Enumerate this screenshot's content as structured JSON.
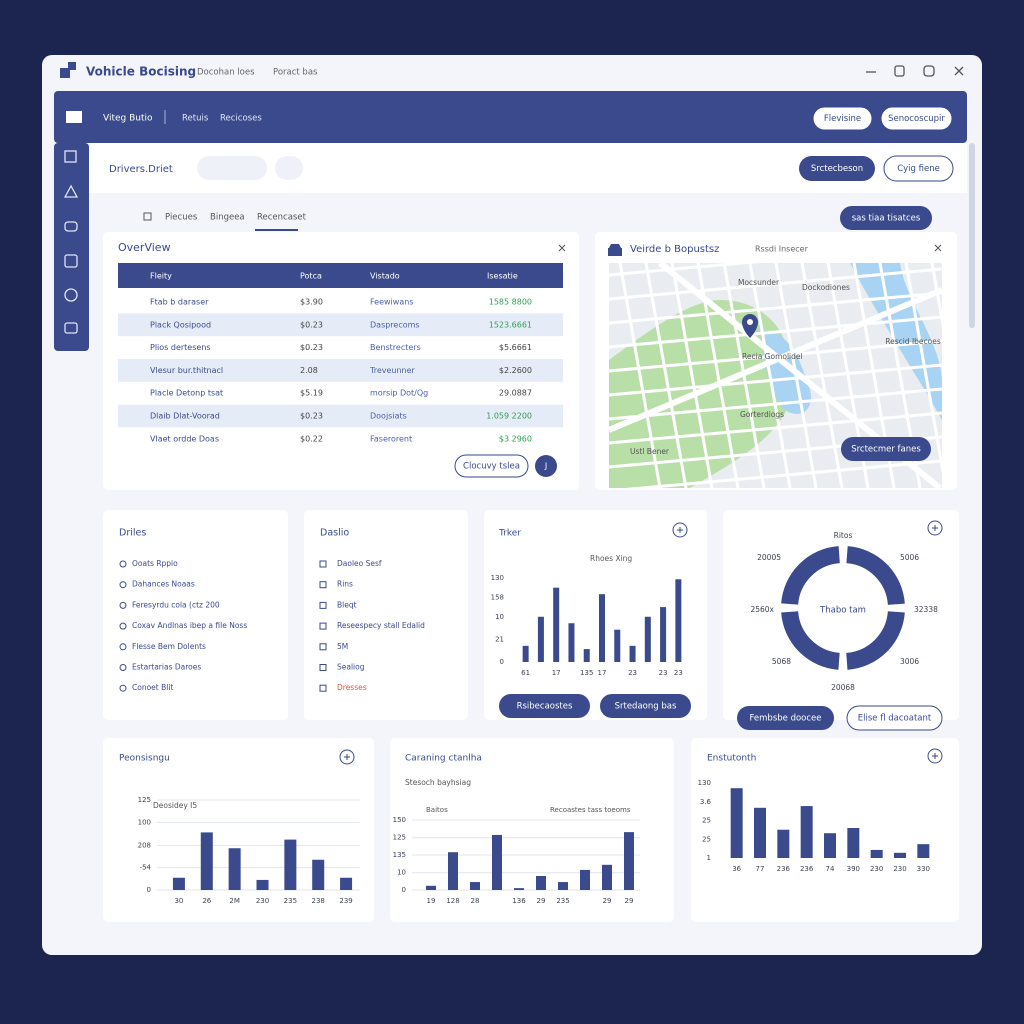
{
  "window": {
    "title": "Vohicle Bocising",
    "menu": [
      "Docohan loes",
      "Poract bas"
    ]
  },
  "header": {
    "title": "Viteg Butio",
    "links": [
      "Retuis",
      "Recicoses"
    ],
    "buttons": [
      "Flevisine",
      "Senocoscupir"
    ]
  },
  "subheader": {
    "title": "Drivers.Driet",
    "buttons": [
      "Srctecbeson",
      "Cyig fiene"
    ]
  },
  "tabs": {
    "items": [
      "Piecues",
      "Bingeea",
      "Recencaset"
    ],
    "action": "sas tiaa tisatces"
  },
  "overview": {
    "title": "OverView",
    "columns": [
      "Fleity",
      "Potca",
      "Vistado",
      "Isesatie"
    ],
    "rows": [
      [
        "Ftab b daraser",
        "$3.90",
        "Feewiwans",
        "1585 8800"
      ],
      [
        "Plack Qosipood",
        "$0.23",
        "Dasprecoms",
        "1523.6661"
      ],
      [
        "Plios dertesens",
        "$0.23",
        "Benstrecters",
        "$5.6661"
      ],
      [
        "Vlesur bur.thitnacl",
        "2.08",
        "Treveunner",
        "$2.2600"
      ],
      [
        "Placle Detonp tsat",
        "$5.19",
        "morsip Dot/Qg",
        "29.0887"
      ],
      [
        "Dlaib Dlat-Voorad",
        "$0.23",
        "Doojsiats",
        "1.059 2200"
      ],
      [
        "Vlaet ordde Doas",
        "$0.22",
        "Faserorent",
        "$3 2960"
      ]
    ],
    "button": "Clocuvy tslea",
    "round_button": "J"
  },
  "map": {
    "title": "Veirde b Bopustsz",
    "subtitle": "Rssdi Insecer",
    "labels": [
      "Mocsunder",
      "Dockodiones",
      "Recia Gomolidel",
      "Rescid Ibecoes",
      "Gorterdiogs",
      "Ustl Bener"
    ],
    "button": "Srctecmer fanes"
  },
  "drives": {
    "title": "Driles",
    "items": [
      "Ooats Rppio",
      "Dahances Noaas",
      "Feresyrdu cola (ctz 200",
      "Coxav Andlnas ibep a file Noss",
      "Flesse Bem Dolents",
      "Estartarias Daroes",
      "Conoet Blit"
    ]
  },
  "details": {
    "title": "Daslio",
    "items": [
      "Daoleo Sesf",
      "Rins",
      "Bleqt",
      "Reseespecy stall Edalid",
      "5M",
      "Sealiog",
      "Dresses"
    ]
  },
  "donut": {
    "title": "Ritos",
    "center": "Thabo tam",
    "labels": [
      "20005",
      "5006",
      "2560x",
      "32338",
      "5068",
      "3006",
      "20068"
    ],
    "buttons": [
      "Fembsbe doocee",
      "Elise fl dacoatant"
    ]
  },
  "charts": [
    {
      "type": "bar",
      "title": "Trker",
      "subtitle": "Rhoes Xing",
      "color": "#3a4a8c",
      "grid": false,
      "categories": [
        "61",
        null,
        "17",
        null,
        "135",
        "17",
        null,
        "23",
        null,
        "23",
        "23"
      ],
      "values": [
        25,
        70,
        115,
        60,
        20,
        105,
        50,
        25,
        70,
        85,
        128
      ],
      "ylim": [
        0,
        130
      ],
      "yticks": [
        0,
        {
          "value": 35,
          "label": "21"
        },
        {
          "value": 70,
          "label": "10"
        },
        {
          "value": 100,
          "label": "158"
        },
        130
      ],
      "buttons": [
        "Rsibecaostes",
        "Srtedaong bas"
      ]
    },
    {
      "type": "bar",
      "title": "Peonsisngu",
      "subtitle": "Deosidey I5",
      "color": "#3a4a8c",
      "grid": true,
      "categories": [
        "30",
        "26",
        "2M",
        "230",
        "235",
        "238",
        "239"
      ],
      "values": [
        17,
        80,
        58,
        14,
        70,
        42,
        17
      ],
      "ylim": [
        0,
        125
      ],
      "yticks": [
        0,
        {
          "value": 31,
          "label": "-54"
        },
        {
          "value": 62,
          "label": "208"
        },
        {
          "value": 94,
          "label": "100"
        },
        125
      ]
    },
    {
      "type": "bar",
      "title": "Caraning ctanlha",
      "subtitle": "Stesoch bayhsiag",
      "legend": [
        "Baitos",
        "Recoastes tass toeoms"
      ],
      "color": "#3a4a8c",
      "grid": true,
      "categories": [
        "19",
        "128",
        "28",
        null,
        "136",
        "29",
        "235",
        null,
        "29",
        "29"
      ],
      "values": [
        9,
        81,
        17,
        118,
        4,
        30,
        17,
        43,
        54,
        124
      ],
      "ylim": [
        0,
        150
      ],
      "yticks": [
        0,
        {
          "value": 37,
          "label": "10"
        },
        {
          "value": 75,
          "label": "135"
        },
        {
          "value": 112,
          "label": "125"
        },
        150
      ]
    },
    {
      "type": "bar",
      "title": "Enstutonth",
      "color": "#3a4a8c",
      "grid": false,
      "categories": [
        "36",
        "77",
        "236",
        "236",
        "74",
        "390",
        "230",
        "230",
        "330"
      ],
      "values": [
        121,
        87,
        49,
        90,
        43,
        52,
        14,
        9,
        24
      ],
      "ylim": [
        0,
        130
      ],
      "yticks": [
        {
          "value": 0,
          "label": "1"
        },
        {
          "value": 32,
          "label": "25"
        },
        {
          "value": 65,
          "label": "25"
        },
        {
          "value": 97,
          "label": "3.6"
        },
        130
      ]
    }
  ]
}
